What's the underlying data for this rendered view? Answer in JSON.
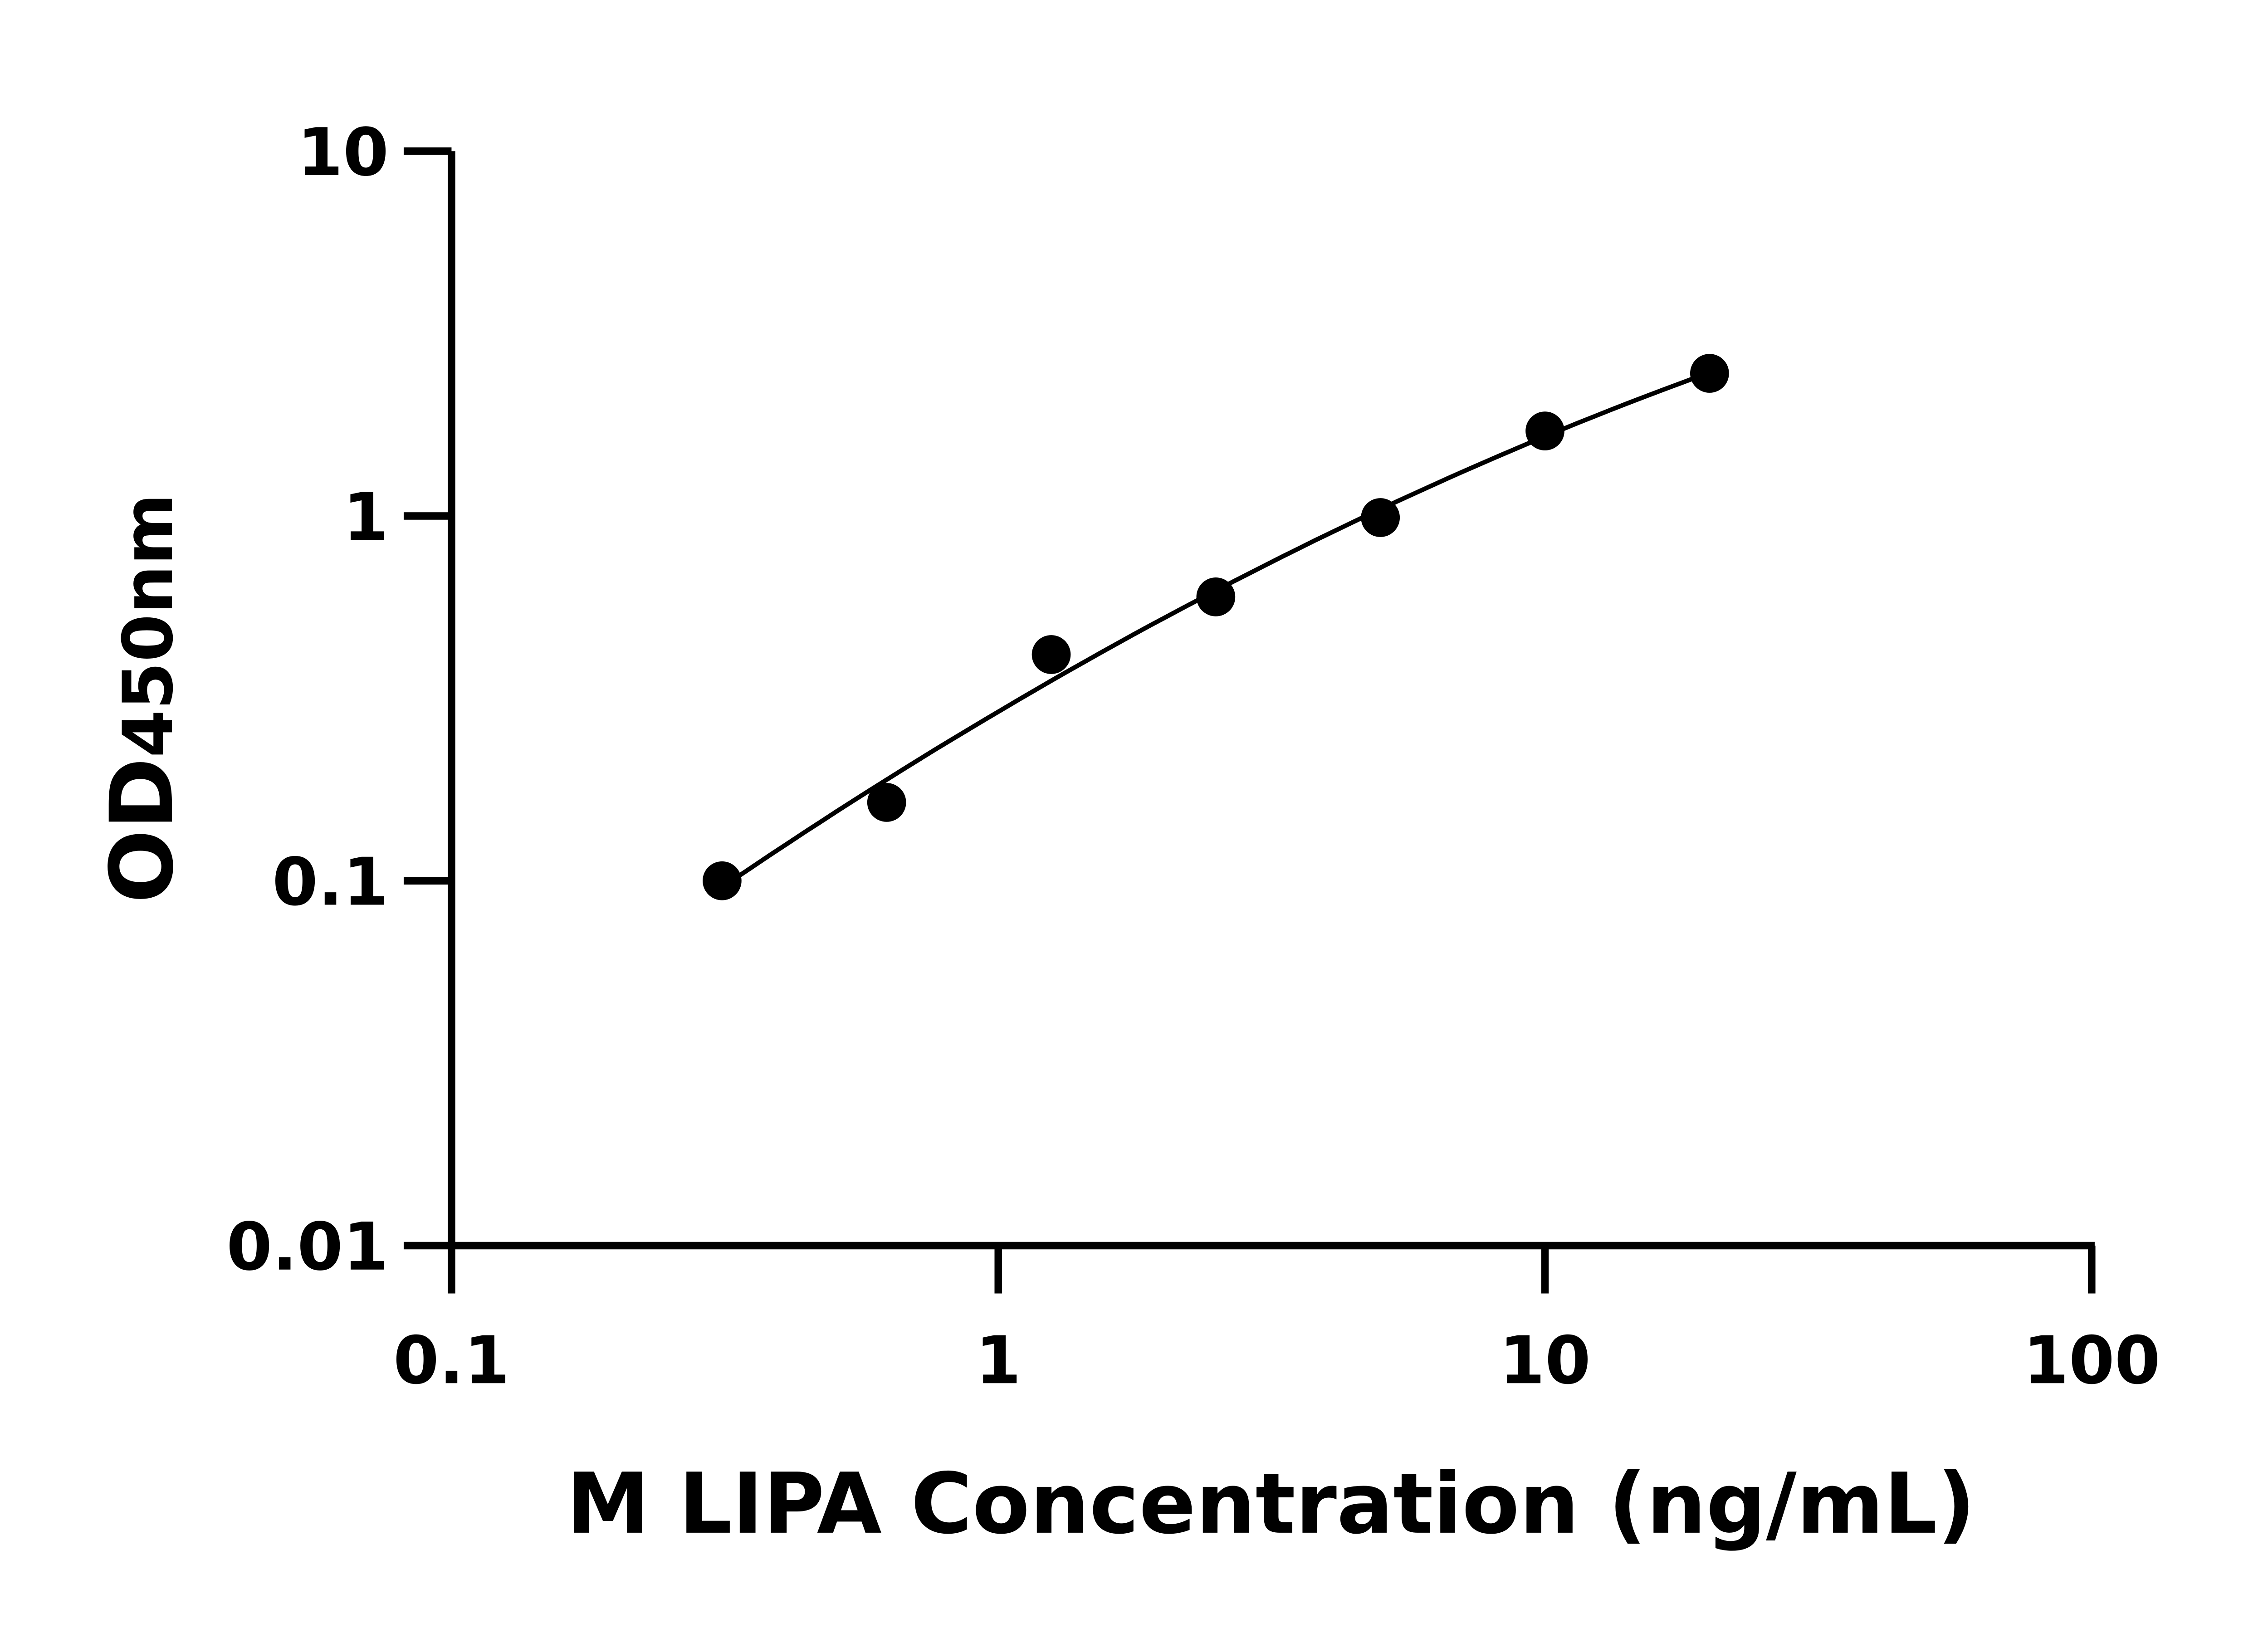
{
  "chart_data": {
    "type": "scatter",
    "title": "",
    "xlabel": "M LIPA Concentration (ng/mL)",
    "ylabel_main": "OD",
    "ylabel_sub": "450nm",
    "x_scale": "log",
    "y_scale": "log",
    "xlim": [
      0.1,
      100
    ],
    "ylim": [
      0.01,
      10
    ],
    "x_ticks": [
      "0.1",
      "1",
      "10",
      "100"
    ],
    "y_ticks": [
      "0.01",
      "0.1",
      "1",
      "10"
    ],
    "x_tick_values": [
      0.1,
      1,
      10,
      100
    ],
    "y_tick_values": [
      0.01,
      0.1,
      1,
      10
    ],
    "grid": false,
    "fit_curve": true,
    "color": "#000000",
    "x": [
      0.3125,
      0.625,
      1.25,
      2.5,
      5,
      10,
      20
    ],
    "y": [
      0.1,
      0.164,
      0.417,
      0.6,
      0.99,
      1.71,
      2.46
    ]
  }
}
